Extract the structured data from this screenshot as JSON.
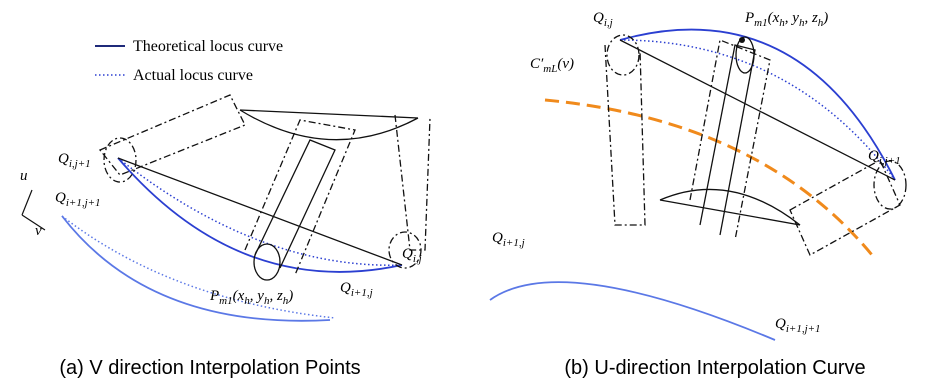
{
  "legend": [
    {
      "label": "Theoretical locus curve"
    },
    {
      "label": "Actual locus curve"
    }
  ],
  "labels_a": [
    {
      "parts": [
        "Q",
        "i,j+1"
      ]
    },
    {
      "parts": [
        "u"
      ]
    },
    {
      "parts": [
        "Q",
        "i+1,j+1"
      ]
    },
    {
      "parts": [
        "v"
      ]
    },
    {
      "parts": [
        "P",
        "m1",
        "(x",
        "h",
        ", y",
        "h",
        ", z",
        "h",
        ")"
      ]
    },
    {
      "parts": [
        "Q",
        "i+1,j"
      ]
    },
    {
      "parts": [
        "Q",
        "i,j"
      ]
    }
  ],
  "labels_b": [
    {
      "parts": [
        "Q",
        "i,j"
      ]
    },
    {
      "parts": [
        "P",
        "m1",
        "(x",
        "h",
        ", y",
        "h",
        ", z",
        "h",
        ")"
      ]
    },
    {
      "parts": [
        "C′",
        "mL",
        "(v)"
      ]
    },
    {
      "parts": [
        "Q",
        "i,j+1"
      ]
    },
    {
      "parts": [
        "Q",
        "i+1,j"
      ]
    },
    {
      "parts": [
        "Q",
        "i+1,j+1"
      ]
    }
  ],
  "captions": [
    "(a) V direction Interpolation Points",
    "(b) U-direction Interpolation Curve"
  ]
}
